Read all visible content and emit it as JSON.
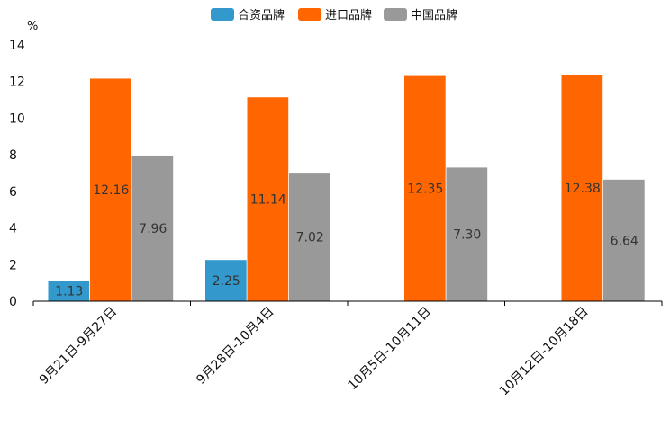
{
  "colors": {
    "合资品牌": "#3399cc",
    "进口品牌": "#ff6600",
    "中国品牌": "#999999",
    "axis": "#000000"
  },
  "chart_data": {
    "type": "bar",
    "title": "",
    "unit_label": "%",
    "xlabel": "",
    "ylabel": "",
    "ylim": [
      0,
      14
    ],
    "yticks": [
      0,
      2,
      4,
      6,
      8,
      10,
      12,
      14
    ],
    "grid": false,
    "legend_position": "top-center",
    "categories": [
      "9月21日-9月27日",
      "9月28日-10月4日",
      "10月5日-10月11日",
      "10月12日-10月18日"
    ],
    "series": [
      {
        "name": "合资品牌",
        "values": [
          1.13,
          2.25,
          null,
          null
        ],
        "labels": [
          "1.13",
          "2.25",
          null,
          null
        ]
      },
      {
        "name": "进口品牌",
        "values": [
          12.16,
          11.14,
          12.35,
          12.38
        ],
        "labels": [
          "12.16",
          "11.14",
          "12.35",
          "12.38"
        ]
      },
      {
        "name": "中国品牌",
        "values": [
          7.96,
          7.02,
          7.3,
          6.64
        ],
        "labels": [
          "7.96",
          "7.02",
          "7.30",
          "6.64"
        ]
      }
    ]
  }
}
